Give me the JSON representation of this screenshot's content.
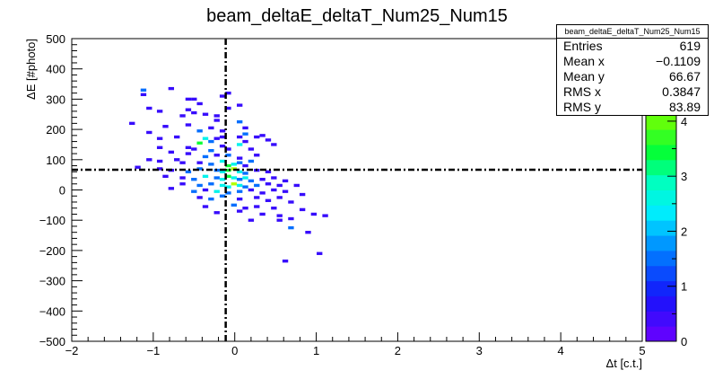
{
  "chart_data": {
    "type": "heatmap",
    "title": "beam_deltaE_deltaT_Num25_Num15",
    "xlabel": "Δt [c.t.]",
    "ylabel": "ΔE [#photo]",
    "xlim": [
      -2,
      5
    ],
    "ylim": [
      -500,
      500
    ],
    "x_ticks": [
      "−2",
      "−1",
      "0",
      "1",
      "2",
      "3",
      "4",
      "5"
    ],
    "y_ticks": [
      "−500",
      "−400",
      "−300",
      "−200",
      "−100",
      "0",
      "100",
      "200",
      "300",
      "400",
      "500"
    ],
    "z_range": [
      0,
      5.5
    ],
    "z_ticks": [
      "0",
      "1",
      "2",
      "3",
      "4",
      "5"
    ],
    "bin_width_x": 0.07,
    "bin_width_y": 10,
    "reference_lines": {
      "x": -0.1109,
      "y": 66.67
    },
    "bins": [
      [
        -1.12,
        330,
        2
      ],
      [
        -1.12,
        315,
        1
      ],
      [
        -0.78,
        335,
        1
      ],
      [
        -0.57,
        300,
        1
      ],
      [
        -0.5,
        300,
        1
      ],
      [
        -0.43,
        285,
        1
      ],
      [
        -0.15,
        310,
        1
      ],
      [
        -0.08,
        320,
        1
      ],
      [
        -1.05,
        270,
        1
      ],
      [
        -0.92,
        260,
        1
      ],
      [
        -0.57,
        265,
        1
      ],
      [
        -0.5,
        255,
        1
      ],
      [
        -0.36,
        250,
        1
      ],
      [
        -0.22,
        245,
        1
      ],
      [
        -0.08,
        270,
        1
      ],
      [
        0.06,
        280,
        1
      ],
      [
        -0.22,
        230,
        1
      ],
      [
        -0.64,
        245,
        1
      ],
      [
        -1.26,
        220,
        1
      ],
      [
        -0.85,
        210,
        1
      ],
      [
        -0.57,
        215,
        1
      ],
      [
        -0.43,
        195,
        2
      ],
      [
        -0.29,
        205,
        1
      ],
      [
        0.06,
        225,
        2
      ],
      [
        0.13,
        205,
        1
      ],
      [
        -0.15,
        195,
        1
      ],
      [
        -1.05,
        190,
        1
      ],
      [
        -0.92,
        170,
        1
      ],
      [
        -0.71,
        175,
        1
      ],
      [
        -0.36,
        170,
        3
      ],
      [
        -0.29,
        160,
        2
      ],
      [
        -0.22,
        170,
        1
      ],
      [
        -0.15,
        175,
        1
      ],
      [
        0.06,
        175,
        1
      ],
      [
        0.13,
        185,
        2
      ],
      [
        0.27,
        175,
        1
      ],
      [
        0.34,
        180,
        1
      ],
      [
        -0.43,
        155,
        4
      ],
      [
        0.13,
        160,
        1
      ],
      [
        0.41,
        165,
        1
      ],
      [
        0.48,
        150,
        1
      ],
      [
        -0.92,
        140,
        1
      ],
      [
        -0.57,
        140,
        1
      ],
      [
        -0.5,
        135,
        1
      ],
      [
        -0.29,
        130,
        2
      ],
      [
        -0.15,
        145,
        1
      ],
      [
        -0.08,
        135,
        1
      ],
      [
        0.06,
        150,
        3
      ],
      [
        0.2,
        135,
        1
      ],
      [
        -0.78,
        125,
        1
      ],
      [
        -0.57,
        120,
        1
      ],
      [
        -0.36,
        110,
        2
      ],
      [
        -0.22,
        115,
        1
      ],
      [
        -0.08,
        115,
        2
      ],
      [
        0.06,
        105,
        1
      ],
      [
        0.27,
        115,
        1
      ],
      [
        -1.05,
        100,
        1
      ],
      [
        -0.92,
        95,
        1
      ],
      [
        -0.71,
        100,
        1
      ],
      [
        -0.64,
        90,
        1
      ],
      [
        -0.43,
        90,
        1
      ],
      [
        -0.29,
        85,
        2
      ],
      [
        -0.15,
        95,
        3
      ],
      [
        -0.08,
        80,
        4
      ],
      [
        -0.01,
        85,
        3
      ],
      [
        0.06,
        90,
        2
      ],
      [
        0.13,
        80,
        1
      ],
      [
        0.2,
        95,
        2
      ],
      [
        -1.19,
        75,
        1
      ],
      [
        -0.92,
        70,
        1
      ],
      [
        -0.78,
        65,
        1
      ],
      [
        -0.57,
        60,
        2
      ],
      [
        -0.43,
        70,
        2
      ],
      [
        -0.22,
        65,
        2
      ],
      [
        -0.15,
        60,
        3
      ],
      [
        -0.08,
        65,
        4
      ],
      [
        -0.01,
        70,
        5
      ],
      [
        0.06,
        60,
        3
      ],
      [
        0.13,
        55,
        2
      ],
      [
        0.27,
        65,
        1
      ],
      [
        0.41,
        60,
        1
      ],
      [
        -0.85,
        45,
        1
      ],
      [
        -0.64,
        40,
        1
      ],
      [
        -0.5,
        35,
        2
      ],
      [
        -0.36,
        45,
        3
      ],
      [
        -0.22,
        40,
        2
      ],
      [
        -0.15,
        35,
        3
      ],
      [
        -0.08,
        45,
        4
      ],
      [
        -0.01,
        40,
        3
      ],
      [
        0.06,
        35,
        2
      ],
      [
        0.13,
        40,
        3
      ],
      [
        0.2,
        30,
        2
      ],
      [
        0.34,
        35,
        1
      ],
      [
        0.48,
        40,
        1
      ],
      [
        0.62,
        30,
        1
      ],
      [
        -0.64,
        20,
        1
      ],
      [
        -0.43,
        15,
        2
      ],
      [
        -0.29,
        20,
        2
      ],
      [
        -0.15,
        15,
        3
      ],
      [
        -0.08,
        10,
        3
      ],
      [
        -0.01,
        20,
        5
      ],
      [
        0.06,
        15,
        3
      ],
      [
        0.13,
        10,
        2
      ],
      [
        0.27,
        15,
        2
      ],
      [
        0.41,
        20,
        1
      ],
      [
        0.55,
        15,
        1
      ],
      [
        0.76,
        15,
        1
      ],
      [
        -0.78,
        5,
        1
      ],
      [
        -0.5,
        -5,
        2
      ],
      [
        -0.36,
        0,
        1
      ],
      [
        -0.22,
        -5,
        3
      ],
      [
        -0.08,
        -10,
        2
      ],
      [
        0.06,
        -5,
        2
      ],
      [
        0.2,
        0,
        1
      ],
      [
        0.34,
        -10,
        1
      ],
      [
        0.48,
        0,
        1
      ],
      [
        0.62,
        -5,
        1
      ],
      [
        0.83,
        -15,
        1
      ],
      [
        -0.43,
        -25,
        1
      ],
      [
        -0.29,
        -30,
        2
      ],
      [
        -0.15,
        -20,
        2
      ],
      [
        0.06,
        -30,
        1
      ],
      [
        0.27,
        -25,
        1
      ],
      [
        0.41,
        -35,
        1
      ],
      [
        0.55,
        -25,
        1
      ],
      [
        0.69,
        -40,
        1
      ],
      [
        -0.36,
        -55,
        1
      ],
      [
        -0.01,
        -50,
        2
      ],
      [
        0.13,
        -60,
        1
      ],
      [
        0.27,
        -55,
        1
      ],
      [
        0.48,
        -60,
        1
      ],
      [
        0.83,
        -65,
        1
      ],
      [
        -0.22,
        -75,
        1
      ],
      [
        0.06,
        -70,
        1
      ],
      [
        0.34,
        -80,
        1
      ],
      [
        0.55,
        -85,
        1
      ],
      [
        0.97,
        -80,
        1
      ],
      [
        0.2,
        -100,
        1
      ],
      [
        0.55,
        -100,
        1
      ],
      [
        0.69,
        -95,
        1
      ],
      [
        1.11,
        -85,
        1
      ],
      [
        0.69,
        -125,
        2
      ],
      [
        0.9,
        -140,
        1
      ],
      [
        1.04,
        -210,
        1
      ],
      [
        0.62,
        -235,
        1
      ]
    ]
  },
  "stats_box": {
    "title": "beam_deltaE_deltaT_Num25_Num15",
    "rows": [
      {
        "label": "Entries",
        "value": "619"
      },
      {
        "label": "Mean x",
        "value": "−0.1109"
      },
      {
        "label": "Mean y",
        "value": "66.67"
      },
      {
        "label": "RMS x",
        "value": "0.3847"
      },
      {
        "label": "RMS y",
        "value": "83.89"
      }
    ]
  }
}
